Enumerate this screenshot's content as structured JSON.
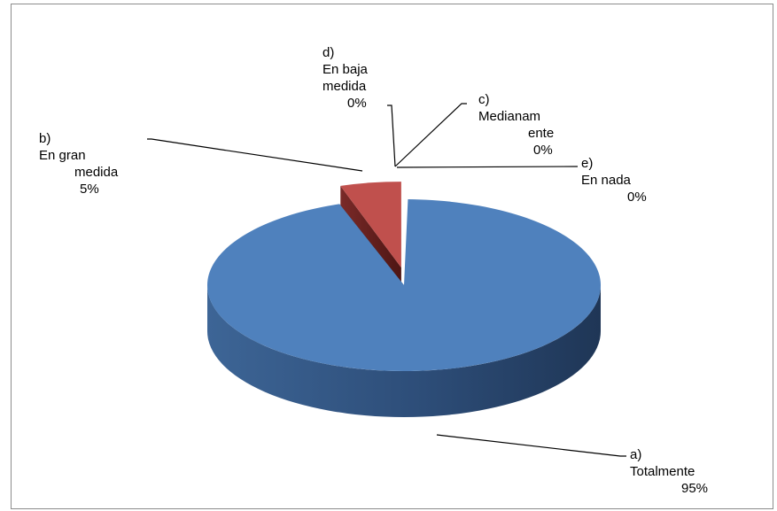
{
  "chart_data": {
    "type": "pie",
    "title": "",
    "style": "3d-exploded",
    "slices": [
      {
        "key": "a",
        "marker": "a)",
        "name": "Totalmente",
        "value": 95,
        "percent_label": "95%",
        "color": "#4f81bd",
        "exploded": false
      },
      {
        "key": "b",
        "marker": "b)",
        "name": "En gran medida",
        "value": 5,
        "percent_label": "5%",
        "color": "#c0504d",
        "exploded": true
      },
      {
        "key": "c",
        "marker": "c)",
        "name": "Medianamente",
        "value": 0,
        "percent_label": "0%",
        "color": "#9bbb59",
        "exploded": false
      },
      {
        "key": "d",
        "marker": "d)",
        "name": "En baja medida",
        "value": 0,
        "percent_label": "0%",
        "color": "#8064a2",
        "exploded": false
      },
      {
        "key": "e",
        "marker": "e)",
        "name": "En nada",
        "value": 0,
        "percent_label": "0%",
        "color": "#4bacc6",
        "exploded": false
      }
    ],
    "data_labels": {
      "a": {
        "marker": "a)",
        "lines": [
          "Totalmente",
          "95%"
        ]
      },
      "b": {
        "marker": "b)",
        "lines": [
          "En gran",
          "medida",
          "5%"
        ]
      },
      "c": {
        "marker": "c)",
        "lines": [
          "Medianam",
          "ente",
          "0%"
        ]
      },
      "d": {
        "marker": "d)",
        "lines": [
          "En baja",
          "medida",
          "0%"
        ]
      },
      "e": {
        "marker": "e)",
        "lines": [
          "En nada",
          "0%"
        ]
      }
    },
    "legend": "none"
  }
}
